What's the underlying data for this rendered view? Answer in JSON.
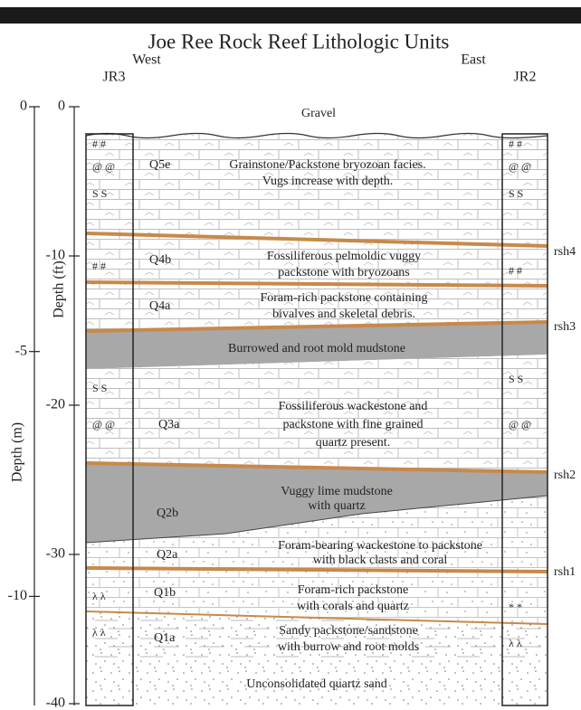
{
  "header": {
    "title": "Joe Ree Rock Reef Lithologic Units",
    "west": "West",
    "east": "East",
    "left_well": "JR3",
    "right_well": "JR2"
  },
  "axes": {
    "depth_ft": {
      "label": "Depth (ft)",
      "ticks": [
        0,
        -10,
        -20,
        -30,
        -40
      ]
    },
    "depth_m": {
      "label": "Depth (m)",
      "ticks": [
        0,
        -5,
        -10
      ]
    }
  },
  "top_unit": "Gravel",
  "mudstone_unit": "Burrowed and root mold mudstone",
  "bottom_unit": "Unconsolidated quartz sand",
  "units": [
    {
      "code": "Q5e",
      "description": [
        "Grainstone/Packstone bryozoan facies.",
        "Vugs increase with depth."
      ]
    },
    {
      "code": "Q4b",
      "description": [
        "Fossiliferous pelmoldic vuggy",
        "packstone with bryozoans"
      ]
    },
    {
      "code": "Q4a",
      "description": [
        "Foram-rich packstone containing",
        "bivalves and skeletal debris."
      ]
    },
    {
      "code": "Q3a",
      "description": [
        "Fossiliferous wackestone and",
        "packstone with fine grained",
        "quartz present."
      ]
    },
    {
      "code": "Q2b",
      "description": [
        "Vuggy lime mudstone",
        "with quartz"
      ]
    },
    {
      "code": "Q2a",
      "description": [
        "Foram-bearing wackestone to packstone",
        "with black clasts and coral"
      ]
    },
    {
      "code": "Q1b",
      "description": [
        "Foram-rich packstone",
        "with corals and quartz"
      ]
    },
    {
      "code": "Q1a",
      "description": [
        "Sandy packstone/sandstone",
        "with burrow and root molds"
      ]
    }
  ],
  "surfaces": [
    "rsh4",
    "rsh3",
    "rsh2",
    "rsh1"
  ]
}
